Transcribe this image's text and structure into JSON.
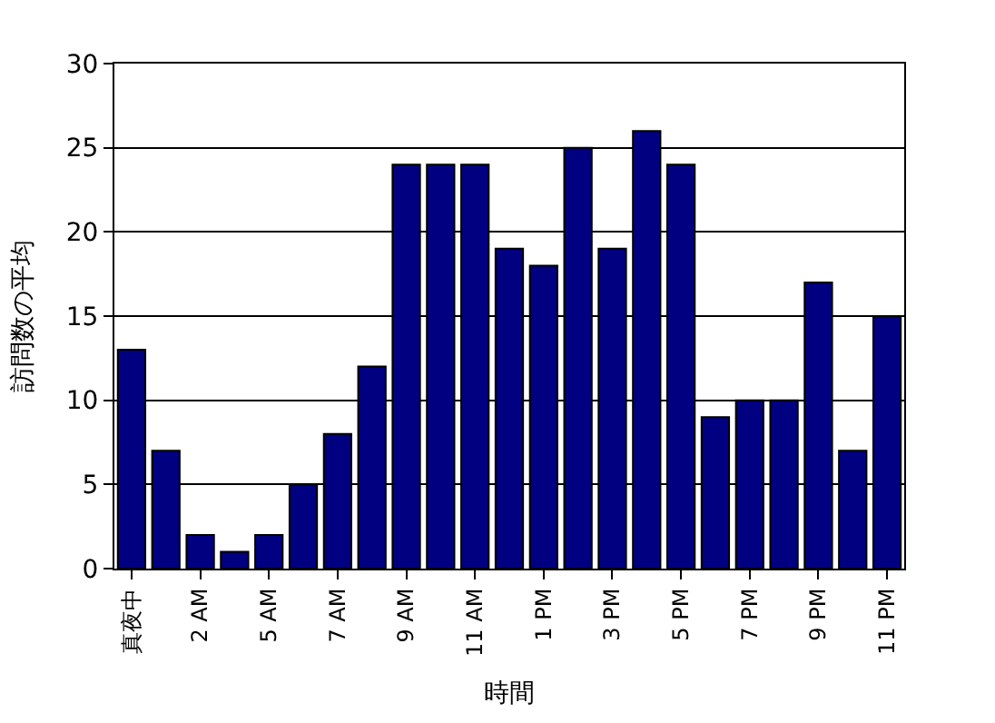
{
  "chart_data": {
    "type": "bar",
    "xlabel": "時間",
    "ylabel": "訪問数の平均",
    "categories": [
      "真夜中",
      null,
      "2 AM",
      null,
      "5 AM",
      null,
      "7 AM",
      null,
      "9 AM",
      null,
      "11 AM",
      null,
      "1 PM",
      null,
      "3 PM",
      null,
      "5 PM",
      null,
      "7 PM",
      null,
      "9 PM",
      null,
      "11 PM"
    ],
    "values": [
      13,
      7,
      2,
      1,
      2,
      5,
      8,
      12,
      24,
      24,
      24,
      19,
      18,
      25,
      19,
      26,
      24,
      9,
      10,
      10,
      17,
      7,
      15
    ],
    "color": "#000080",
    "ylim": [
      0,
      30
    ],
    "yticks": [
      0,
      5,
      10,
      15,
      20,
      25,
      30
    ],
    "grid": "y"
  }
}
